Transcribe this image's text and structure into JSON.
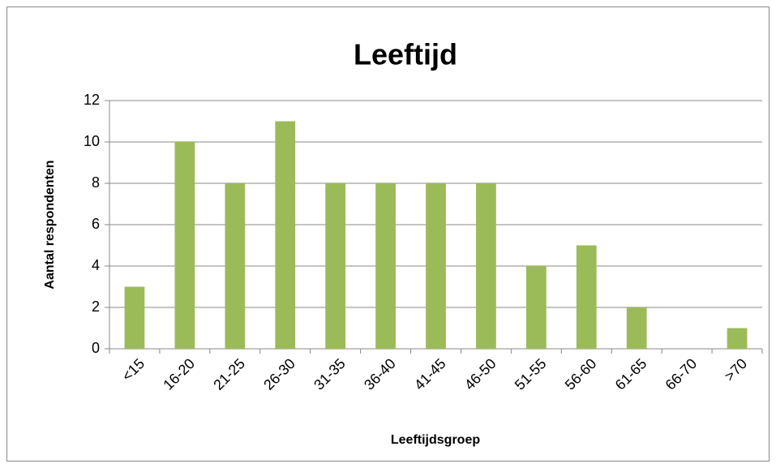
{
  "chart_data": {
    "type": "bar",
    "title": "Leeftijd",
    "x_label": "Leeftijdsgroep",
    "y_label": "Aantal respondenten",
    "categories": [
      "<15",
      "16-20",
      "21-25",
      "26-30",
      "31-35",
      "36-40",
      "41-45",
      "46-50",
      "51-55",
      "56-60",
      "61-65",
      "66-70",
      ">70"
    ],
    "values": [
      3,
      10,
      8,
      11,
      8,
      8,
      8,
      8,
      4,
      5,
      2,
      0,
      1
    ],
    "color": "#9bbb59",
    "ylim": [
      0,
      12
    ],
    "yticks": [
      0,
      2,
      4,
      6,
      8,
      10,
      12
    ],
    "grid": true
  }
}
